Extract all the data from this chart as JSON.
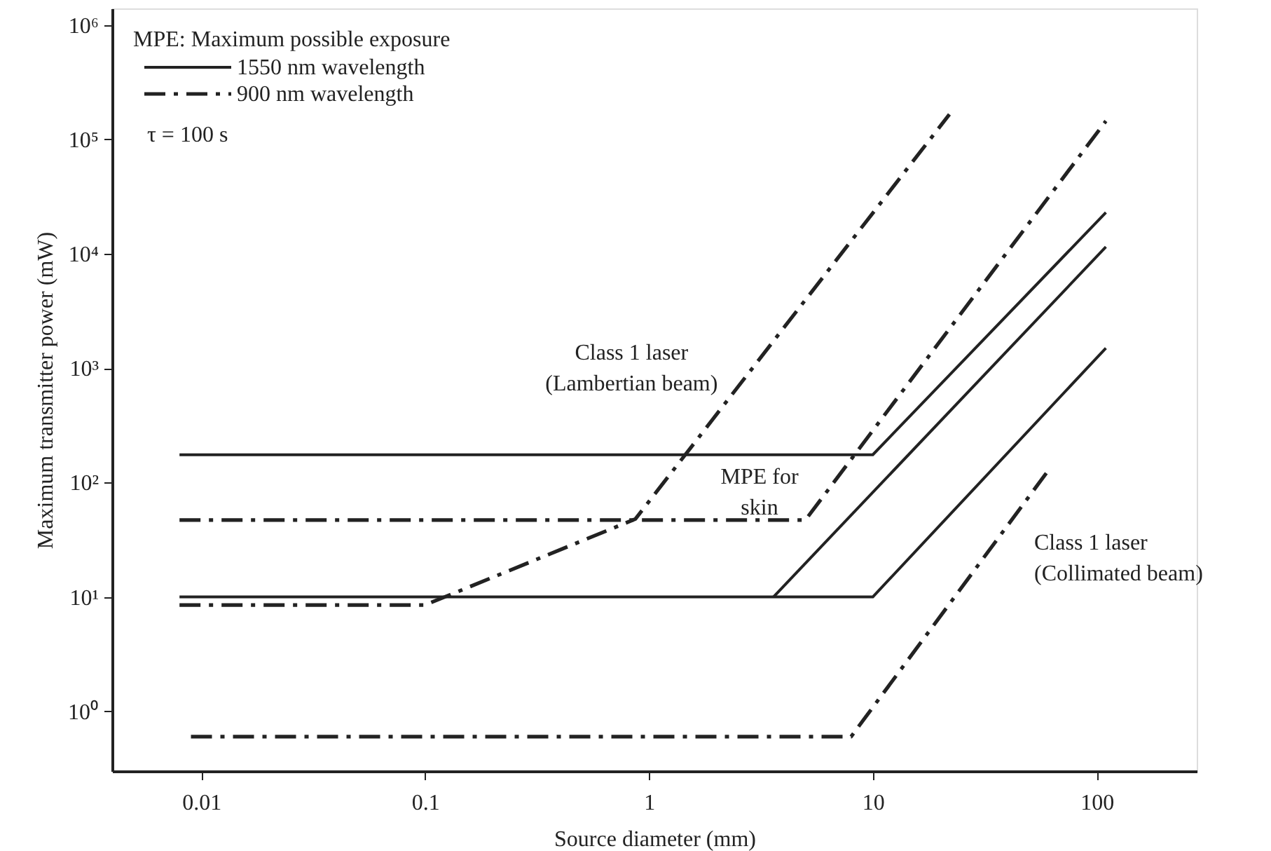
{
  "chart_data": {
    "type": "line",
    "log": "xy",
    "xlabel": "Source diameter (mm)",
    "ylabel": "Maximum transmitter power (mW)",
    "xlim": [
      0.004,
      280
    ],
    "ylim": [
      0.3,
      1400000
    ],
    "xticks": [
      0.01,
      0.1,
      1,
      10,
      100
    ],
    "yticks": [
      {
        "value": 1,
        "label": "10⁰"
      },
      {
        "value": 10,
        "label": "10¹"
      },
      {
        "value": 100,
        "label": "10²"
      },
      {
        "value": 1000,
        "label": "10³"
      },
      {
        "value": 10000,
        "label": "10⁴"
      },
      {
        "value": 100000,
        "label": "10⁵"
      },
      {
        "value": 1000000,
        "label": "10⁶"
      }
    ],
    "grid": false,
    "legend": "top left",
    "legend_title": "MPE: Maximum possible exposure",
    "series": [
      {
        "name": "1550 nm wavelength",
        "color": "#222222",
        "line_style": "solid",
        "x": [
          0.008,
          10,
          110
        ],
        "values": [
          175,
          175,
          23000
        ]
      },
      {
        "color": "#222222",
        "line_style": "solid",
        "x": [
          0.008,
          10,
          110
        ],
        "values": [
          10,
          10,
          1500
        ]
      },
      {
        "color": "#222222",
        "line_style": "solid",
        "x": [
          3.6,
          110
        ],
        "values": [
          10,
          11500
        ]
      },
      {
        "name": "900 nm wavelength",
        "color": "#222222",
        "line_style": "dashdot",
        "x": [
          0.008,
          0.1,
          0.87,
          22
        ],
        "values": [
          8.5,
          8.5,
          48,
          166000
        ]
      },
      {
        "color": "#222222",
        "line_style": "dashdot",
        "x": [
          0.008,
          5,
          110
        ],
        "values": [
          47,
          47,
          145000
        ]
      },
      {
        "color": "#222222",
        "line_style": "dashdot",
        "x": [
          0.009,
          8,
          60
        ],
        "values": [
          0.6,
          0.6,
          123
        ]
      }
    ],
    "annotations": [
      "τ = 100 s",
      {
        "text": "Class 1 laser\n(Lambertian beam)",
        "x": 1.6,
        "y": 220
      },
      "MPE for\nskin",
      "Class 1 laser\n(Collimated beam)"
    ]
  }
}
